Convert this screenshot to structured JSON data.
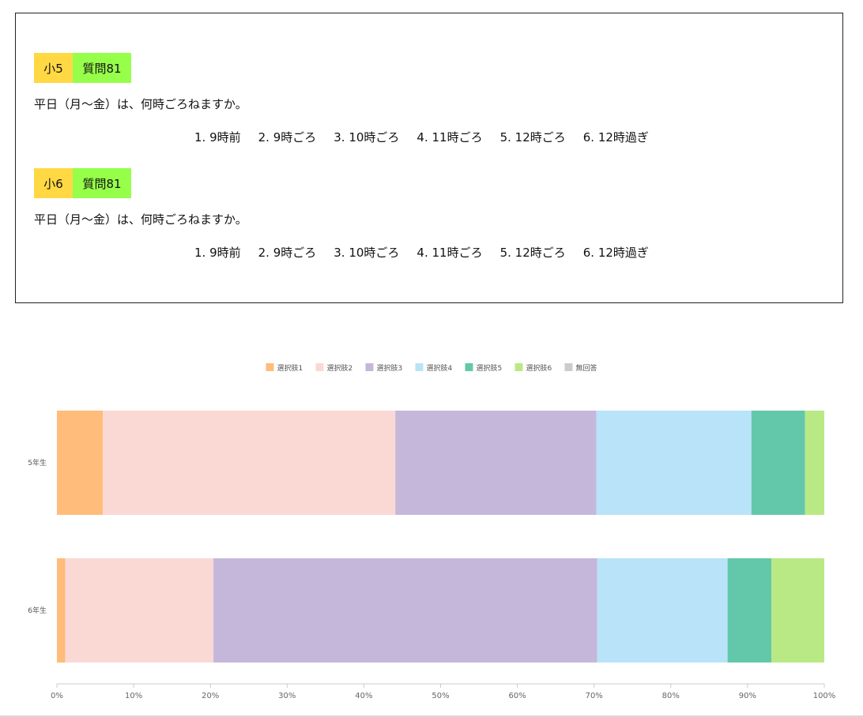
{
  "questions": [
    {
      "grade_label": "小5",
      "question_label": "質問81",
      "text": "平日（月～金）は、何時ごろねますか。",
      "choices": [
        "1. 9時前",
        "2. 9時ごろ",
        "3. 10時ごろ",
        "4. 11時ごろ",
        "5. 12時ごろ",
        "6. 12時過ぎ"
      ]
    },
    {
      "grade_label": "小6",
      "question_label": "質問81",
      "text": "平日（月～金）は、何時ごろねますか。",
      "choices": [
        "1. 9時前",
        "2. 9時ごろ",
        "3. 10時ごろ",
        "4. 11時ごろ",
        "5. 12時ごろ",
        "6. 12時過ぎ"
      ]
    }
  ],
  "colors": {
    "grade_tag": "#ffd843",
    "question_tag": "#96ff4a"
  },
  "chart_data": {
    "type": "bar",
    "orientation": "horizontal",
    "stacked": true,
    "normalized": true,
    "categories": [
      "5年生",
      "6年生"
    ],
    "series": [
      {
        "name": "選択肢1",
        "color": "#ffbc7a",
        "values": [
          6.0,
          1.1
        ]
      },
      {
        "name": "選択肢2",
        "color": "#fad9d5",
        "values": [
          38.1,
          19.3
        ]
      },
      {
        "name": "選択肢3",
        "color": "#c5b7d9",
        "values": [
          26.2,
          50.0
        ]
      },
      {
        "name": "選択肢4",
        "color": "#b9e3f8",
        "values": [
          20.2,
          17.0
        ]
      },
      {
        "name": "選択肢5",
        "color": "#63c8aa",
        "values": [
          7.0,
          5.7
        ]
      },
      {
        "name": "選択肢6",
        "color": "#b9e985",
        "values": [
          2.5,
          6.9
        ]
      },
      {
        "name": "無回答",
        "color": "#cccccc",
        "values": [
          0.0,
          0.0
        ]
      }
    ],
    "xlim": [
      0,
      100
    ],
    "xticks": [
      "0%",
      "10%",
      "20%",
      "30%",
      "40%",
      "50%",
      "60%",
      "70%",
      "80%",
      "90%",
      "100%"
    ],
    "legend_position": "top-center",
    "grid": false
  }
}
